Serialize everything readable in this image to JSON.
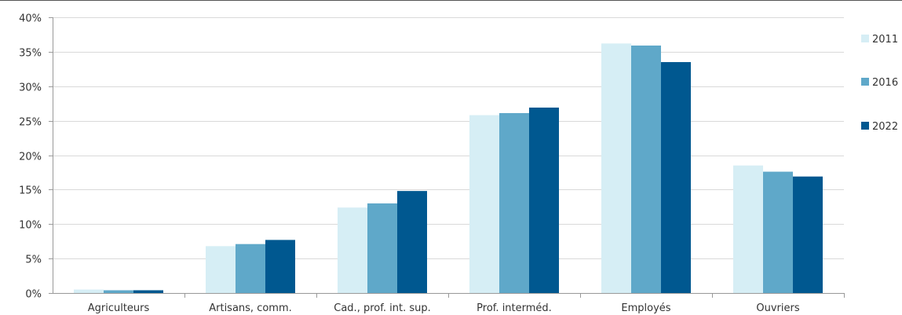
{
  "chart_data": {
    "type": "bar",
    "categories": [
      "Agriculteurs",
      "Artisans, comm.",
      "Cad., prof. int. sup.",
      "Prof. interméd.",
      "Employés",
      "Ouvriers"
    ],
    "series": [
      {
        "name": "2011",
        "color": "#d6eef5",
        "values": [
          0.5,
          6.8,
          12.4,
          25.8,
          36.2,
          18.5
        ]
      },
      {
        "name": "2016",
        "color": "#5fa8c9",
        "values": [
          0.4,
          7.1,
          13.0,
          26.1,
          35.9,
          17.6
        ]
      },
      {
        "name": "2022",
        "color": "#005890",
        "values": [
          0.4,
          7.7,
          14.8,
          26.9,
          33.5,
          16.9
        ]
      }
    ],
    "y_ticks": [
      "0%",
      "5%",
      "10%",
      "15%",
      "20%",
      "25%",
      "30%",
      "35%",
      "40%"
    ],
    "ylim": [
      0,
      40
    ],
    "grid": true,
    "legend_position": "right"
  }
}
